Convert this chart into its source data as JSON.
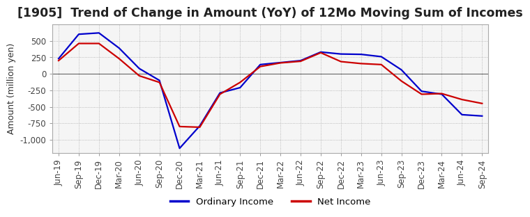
{
  "title": "[1905]  Trend of Change in Amount (YoY) of 12Mo Moving Sum of Incomes",
  "ylabel": "Amount (million yen)",
  "legend_labels": [
    "Ordinary Income",
    "Net Income"
  ],
  "line_colors": [
    "#0000cc",
    "#cc0000"
  ],
  "x_labels": [
    "Jun-19",
    "Sep-19",
    "Dec-19",
    "Mar-20",
    "Jun-20",
    "Sep-20",
    "Dec-20",
    "Mar-21",
    "Jun-21",
    "Sep-21",
    "Dec-21",
    "Mar-22",
    "Jun-22",
    "Sep-22",
    "Dec-22",
    "Mar-23",
    "Jun-23",
    "Sep-23",
    "Dec-23",
    "Mar-24",
    "Jun-24",
    "Sep-24"
  ],
  "ordinary_income": [
    230,
    600,
    620,
    390,
    80,
    -100,
    -1130,
    -790,
    -290,
    -210,
    140,
    170,
    200,
    330,
    300,
    295,
    260,
    60,
    -265,
    -310,
    -620,
    -640
  ],
  "net_income": [
    200,
    460,
    460,
    230,
    -30,
    -130,
    -800,
    -810,
    -310,
    -130,
    110,
    165,
    190,
    320,
    185,
    155,
    140,
    -110,
    -310,
    -300,
    -390,
    -450
  ],
  "ylim": [
    -1200,
    750
  ],
  "yticks": [
    500,
    250,
    0,
    -250,
    -500,
    -750,
    -1000
  ],
  "title_fontsize": 12.5,
  "axis_fontsize": 9,
  "tick_fontsize": 8.5
}
